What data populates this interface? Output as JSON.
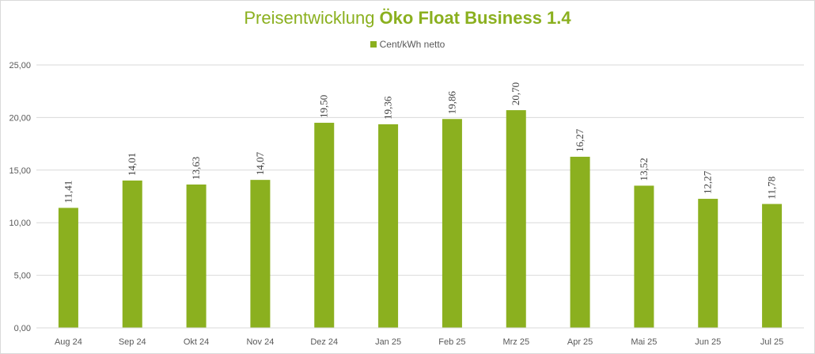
{
  "title": {
    "regular": "Preisentwicklung ",
    "bold": "Öko Float Business 1.4"
  },
  "colors": {
    "bar": "#8bb01f",
    "title": "#8bb01f",
    "grid": "#d9d9d9",
    "axis_text": "#595959"
  },
  "chart_data": {
    "type": "bar",
    "categories": [
      "Aug 24",
      "Sep 24",
      "Okt 24",
      "Nov 24",
      "Dez 24",
      "Jan 25",
      "Feb 25",
      "Mrz 25",
      "Apr 25",
      "Mai 25",
      "Jun 25",
      "Jul 25"
    ],
    "series": [
      {
        "name": "Cent/kWh netto",
        "values": [
          11.41,
          14.01,
          13.63,
          14.07,
          19.5,
          19.36,
          19.86,
          20.7,
          16.27,
          13.52,
          12.27,
          11.78
        ],
        "labels": [
          "11,41",
          "14,01",
          "13,63",
          "14,07",
          "19,50",
          "19,36",
          "19,86",
          "20,70",
          "16,27",
          "13,52",
          "12,27",
          "11,78"
        ]
      }
    ],
    "title": "Preisentwicklung Öko Float Business 1.4",
    "xlabel": "",
    "ylabel": "",
    "ylim": [
      0,
      25
    ],
    "yticks": [
      0,
      5,
      10,
      15,
      20,
      25
    ],
    "ytick_labels": [
      "0,00",
      "5,00",
      "10,00",
      "15,00",
      "20,00",
      "25,00"
    ],
    "grid": true,
    "legend_position": "top-center"
  }
}
